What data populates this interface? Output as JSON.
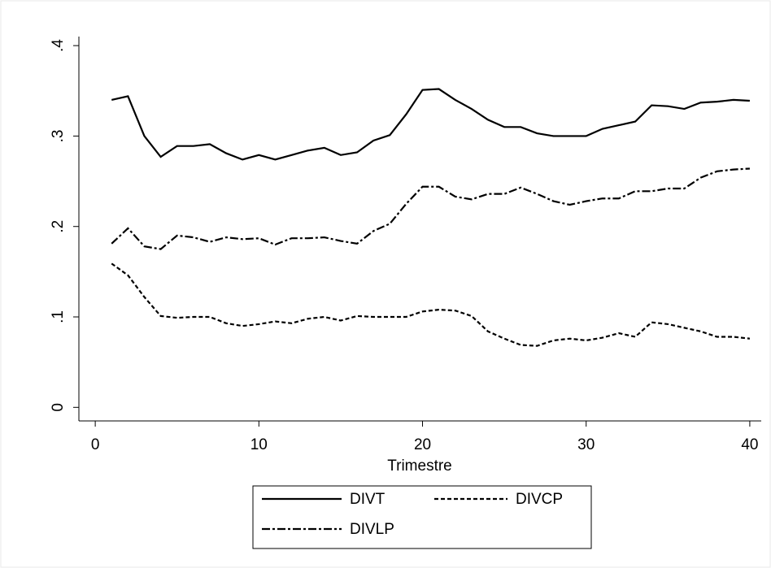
{
  "chart_data": {
    "type": "line",
    "x_label": "Trimestre",
    "x": [
      1,
      2,
      3,
      4,
      5,
      6,
      7,
      8,
      9,
      10,
      11,
      12,
      13,
      14,
      15,
      16,
      17,
      18,
      19,
      20,
      21,
      22,
      23,
      24,
      25,
      26,
      27,
      28,
      29,
      30,
      31,
      32,
      33,
      34,
      35,
      36,
      37,
      38,
      39,
      40
    ],
    "series": [
      {
        "name": "DIVT",
        "color": "#000000",
        "line_style": "solid",
        "values": [
          0.34,
          0.344,
          0.3,
          0.277,
          0.289,
          0.289,
          0.291,
          0.281,
          0.274,
          0.279,
          0.274,
          0.279,
          0.284,
          0.287,
          0.279,
          0.282,
          0.295,
          0.301,
          0.324,
          0.351,
          0.352,
          0.34,
          0.33,
          0.318,
          0.31,
          0.31,
          0.303,
          0.3,
          0.3,
          0.3,
          0.308,
          0.312,
          0.316,
          0.334,
          0.333,
          0.33,
          0.337,
          0.338,
          0.34,
          0.339
        ]
      },
      {
        "name": "DIVCP",
        "color": "#000000",
        "line_style": "dashed",
        "values": [
          0.159,
          0.146,
          0.122,
          0.101,
          0.099,
          0.1,
          0.1,
          0.093,
          0.09,
          0.092,
          0.095,
          0.093,
          0.098,
          0.1,
          0.096,
          0.101,
          0.1,
          0.1,
          0.1,
          0.106,
          0.108,
          0.107,
          0.101,
          0.084,
          0.076,
          0.069,
          0.068,
          0.074,
          0.076,
          0.074,
          0.077,
          0.082,
          0.078,
          0.094,
          0.092,
          0.088,
          0.084,
          0.078,
          0.078,
          0.076
        ]
      },
      {
        "name": "DIVLP",
        "color": "#000000",
        "line_style": "dashdot",
        "values": [
          0.181,
          0.198,
          0.178,
          0.175,
          0.19,
          0.188,
          0.183,
          0.188,
          0.186,
          0.187,
          0.18,
          0.187,
          0.187,
          0.188,
          0.184,
          0.181,
          0.195,
          0.203,
          0.225,
          0.244,
          0.244,
          0.233,
          0.23,
          0.236,
          0.236,
          0.243,
          0.236,
          0.228,
          0.224,
          0.228,
          0.231,
          0.231,
          0.239,
          0.239,
          0.242,
          0.242,
          0.254,
          0.261,
          0.263,
          0.264
        ]
      }
    ],
    "xlim": [
      -1,
      40.7
    ],
    "xticks": [
      0,
      10,
      20,
      30,
      40
    ],
    "ylim": [
      -0.015,
      0.41
    ],
    "yticks": [
      0,
      {
        "value": 0.1,
        "label": ".1"
      },
      {
        "value": 0.2,
        "label": ".2"
      },
      {
        "value": 0.3,
        "label": ".3"
      },
      {
        "value": 0.4,
        "label": ".4"
      }
    ],
    "grid": false,
    "legend": "bottom"
  }
}
